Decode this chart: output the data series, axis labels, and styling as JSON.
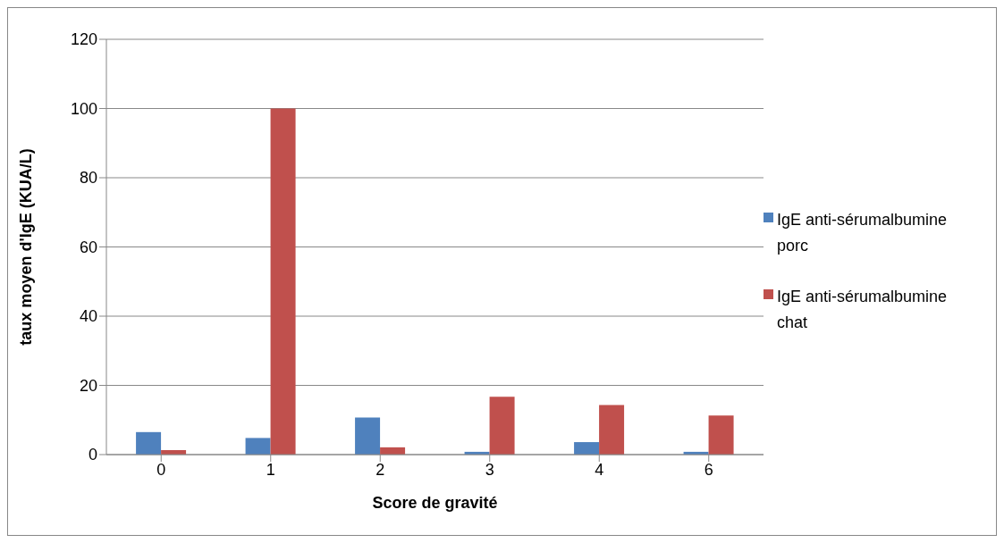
{
  "chart_data": {
    "type": "bar",
    "xlabel": "Score de gravité",
    "ylabel": "taux moyen d'IgE (KUA/L)",
    "categories": [
      "0",
      "1",
      "2",
      "3",
      "4",
      "6"
    ],
    "series": [
      {
        "name": "IgE anti-sérumalbumine porc",
        "color": "#4f81bd",
        "values": [
          6.5,
          4.8,
          10.7,
          0.8,
          3.6,
          0.8
        ]
      },
      {
        "name": "IgE anti-sérumalbumine chat",
        "color": "#c0504d",
        "values": [
          1.3,
          100,
          2.1,
          16.7,
          14.3,
          11.3
        ]
      }
    ],
    "ylim": [
      0,
      120
    ],
    "yticks": [
      0,
      20,
      40,
      60,
      80,
      100,
      120
    ],
    "grid": "y",
    "legend": "right"
  }
}
